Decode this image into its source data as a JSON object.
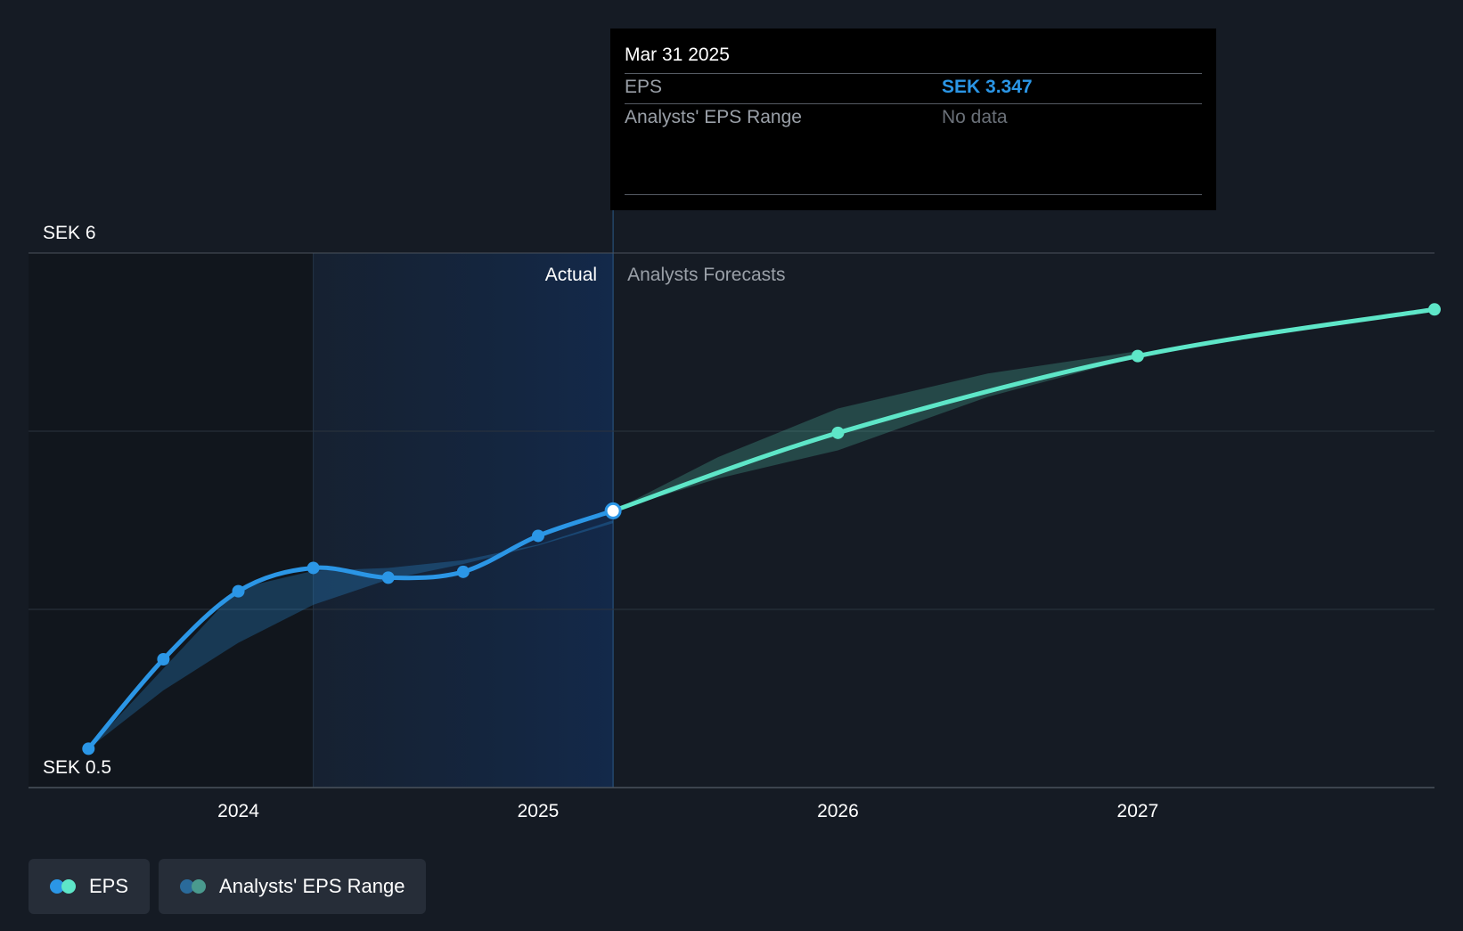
{
  "chart_data": {
    "type": "line",
    "ylabel_top": "SEK 6",
    "ylabel_bottom": "SEK 0.5",
    "ylim": [
      0.5,
      6
    ],
    "x_ticks": [
      {
        "label": "2024",
        "value": 2024.0
      },
      {
        "label": "2025",
        "value": 2025.0
      },
      {
        "label": "2026",
        "value": 2026.0
      },
      {
        "label": "2027",
        "value": 2027.0
      }
    ],
    "xlim": [
      2023.3,
      2027.99
    ],
    "grid": true,
    "region_labels": {
      "actual": "Actual",
      "forecast": "Analysts Forecasts"
    },
    "actual_divider_x": 2025.25,
    "highlight_start_x": 2024.25,
    "series": [
      {
        "name": "EPS",
        "segment": "actual",
        "color": "#2b96e6",
        "points": [
          {
            "x": 2023.5,
            "y": 0.9
          },
          {
            "x": 2023.75,
            "y": 1.82
          },
          {
            "x": 2024.0,
            "y": 2.52
          },
          {
            "x": 2024.25,
            "y": 2.76
          },
          {
            "x": 2024.5,
            "y": 2.66
          },
          {
            "x": 2024.75,
            "y": 2.72
          },
          {
            "x": 2025.0,
            "y": 3.09
          },
          {
            "x": 2025.25,
            "y": 3.347
          }
        ]
      },
      {
        "name": "EPS",
        "segment": "forecast",
        "color": "#5ee6c8",
        "points": [
          {
            "x": 2025.25,
            "y": 3.347
          },
          {
            "x": 2026.0,
            "y": 4.15
          },
          {
            "x": 2027.0,
            "y": 4.94
          },
          {
            "x": 2027.99,
            "y": 5.42
          }
        ]
      }
    ],
    "range_actual": {
      "color": "#2b96e6",
      "upper": [
        {
          "x": 2023.5,
          "y": 0.9
        },
        {
          "x": 2024.0,
          "y": 2.55
        },
        {
          "x": 2024.25,
          "y": 2.73
        },
        {
          "x": 2024.5,
          "y": 2.76
        },
        {
          "x": 2024.75,
          "y": 2.84
        },
        {
          "x": 2025.0,
          "y": 3.0
        },
        {
          "x": 2025.25,
          "y": 3.25
        }
      ],
      "lower": [
        {
          "x": 2025.25,
          "y": 3.22
        },
        {
          "x": 2025.0,
          "y": 2.99
        },
        {
          "x": 2024.75,
          "y": 2.8
        },
        {
          "x": 2024.5,
          "y": 2.64
        },
        {
          "x": 2024.25,
          "y": 2.38
        },
        {
          "x": 2024.0,
          "y": 1.99
        },
        {
          "x": 2023.75,
          "y": 1.5
        },
        {
          "x": 2023.5,
          "y": 0.9
        }
      ]
    },
    "range_forecast": {
      "color": "#5ee6c8",
      "upper": [
        {
          "x": 2025.25,
          "y": 3.347
        },
        {
          "x": 2025.6,
          "y": 3.9
        },
        {
          "x": 2026.0,
          "y": 4.4
        },
        {
          "x": 2026.5,
          "y": 4.76
        },
        {
          "x": 2027.0,
          "y": 4.99
        }
      ],
      "lower": [
        {
          "x": 2027.0,
          "y": 4.93
        },
        {
          "x": 2026.5,
          "y": 4.52
        },
        {
          "x": 2026.0,
          "y": 3.97
        },
        {
          "x": 2025.6,
          "y": 3.68
        },
        {
          "x": 2025.25,
          "y": 3.347
        }
      ]
    }
  },
  "tooltip": {
    "date": "Mar 31 2025",
    "rows": [
      {
        "label": "EPS",
        "value": "SEK 3.347",
        "value_color": "#2b96e6"
      },
      {
        "label": "Analysts' EPS Range",
        "value": "No data",
        "value_color": "#6a7078"
      }
    ]
  },
  "legend": {
    "items": [
      {
        "label": "EPS",
        "colors": [
          "#2b96e6",
          "#5ee6c8"
        ]
      },
      {
        "label": "Analysts' EPS Range",
        "colors": [
          "#2a6a9a",
          "#4a9a8e"
        ]
      }
    ]
  }
}
